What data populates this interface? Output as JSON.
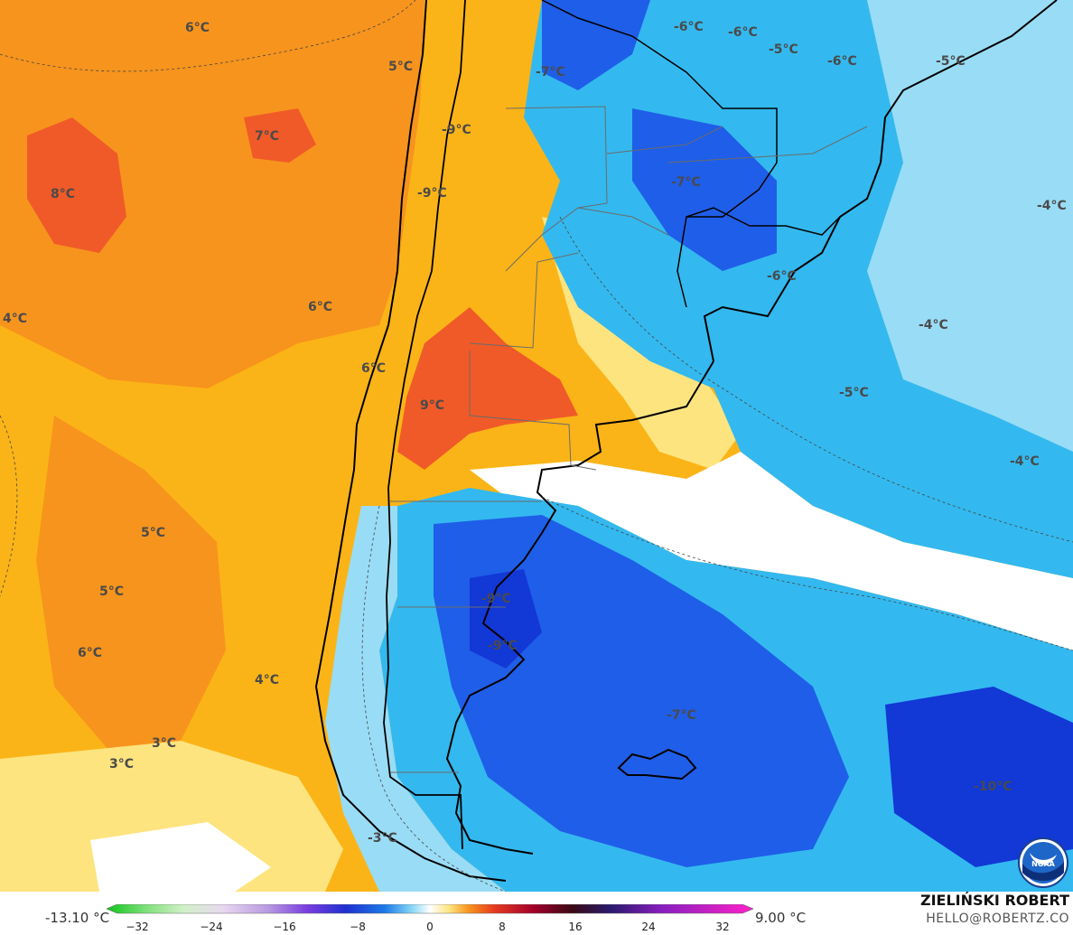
{
  "map": {
    "labels": [
      {
        "text": "6°C"
      },
      {
        "text": "5°C"
      },
      {
        "text": "7°C"
      },
      {
        "text": "8°C"
      },
      {
        "text": "4°C"
      },
      {
        "text": "6°C"
      },
      {
        "text": "6°C"
      },
      {
        "text": "9°C"
      },
      {
        "text": "5°C"
      },
      {
        "text": "5°C"
      },
      {
        "text": "6°C"
      },
      {
        "text": "4°C"
      },
      {
        "text": "3°C"
      },
      {
        "text": "3°C"
      },
      {
        "text": "-3°C"
      },
      {
        "text": "-9°C"
      },
      {
        "text": "-9°C"
      },
      {
        "text": "-7°C"
      },
      {
        "text": "-6°C"
      },
      {
        "text": "-6°C"
      },
      {
        "text": "-5°C"
      },
      {
        "text": "-6°C"
      },
      {
        "text": "-5°C"
      },
      {
        "text": "-7°C"
      },
      {
        "text": "-6°C"
      },
      {
        "text": "-4°C"
      },
      {
        "text": "-4°C"
      },
      {
        "text": "-5°C"
      },
      {
        "text": "-4°C"
      },
      {
        "text": "-9°C"
      },
      {
        "text": "-9°C"
      },
      {
        "text": "-7°C"
      },
      {
        "text": "-10°C"
      }
    ]
  },
  "legend": {
    "min_value": "-13.10 °C",
    "max_value": "9.00 °C",
    "ticks": [
      "−32",
      "−24",
      "−16",
      "−8",
      "0",
      "8",
      "16",
      "24",
      "32"
    ]
  },
  "credit": {
    "name": "ZIELIŃSKI ROBERT",
    "email": "HELLO@ROBERTZ.CO"
  },
  "logo": {
    "text": "NOAA",
    "icon": "noaa-logo"
  },
  "colors": {
    "warm_deep": "#f7941d",
    "warm_mid": "#fbb417",
    "warm_light": "#fde47f",
    "neutral": "#ffffff",
    "cold_light": "#99dcf5",
    "cold_mid": "#33b9ef",
    "cold_deep": "#1f5ee8",
    "cold_deepest": "#1238d6",
    "hot_spot": "#f05a28"
  }
}
